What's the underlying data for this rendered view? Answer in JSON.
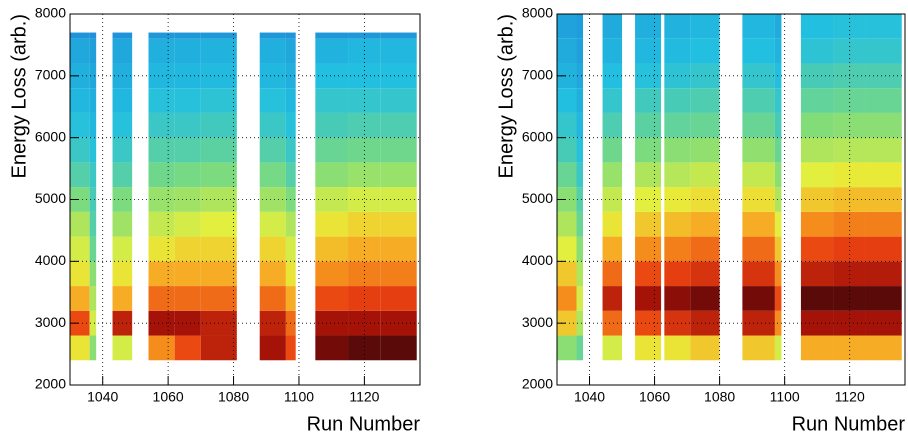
{
  "chart_data": [
    {
      "type": "heatmap",
      "x_label": "Run Number",
      "y_label": "Energy Loss (arb.)",
      "xlim": [
        1030,
        1137
      ],
      "ylim": [
        2000,
        8000
      ],
      "xticks": [
        1040,
        1060,
        1080,
        1100,
        1120
      ],
      "yticks": [
        2000,
        3000,
        4000,
        5000,
        6000,
        7000,
        8000
      ],
      "grid": true,
      "zlim": [
        0,
        100
      ],
      "colors": [
        "#1e88d8",
        "#22c0e0",
        "#7fdc7a",
        "#e8f03a",
        "#f8a020",
        "#e84010",
        "#a01008",
        "#5a0a08"
      ],
      "xbins": [
        1030,
        1036,
        1038,
        1043,
        1049,
        1054,
        1062,
        1070,
        1081,
        1088,
        1096,
        1099,
        1105,
        1115,
        1125,
        1136
      ],
      "ybins": [
        2400,
        2800,
        3200,
        3600,
        4000,
        4400,
        4800,
        5200,
        5600,
        6000,
        6400,
        6800,
        7200,
        7600,
        7700
      ],
      "z": [
        [
          45,
          30,
          null,
          40,
          null,
          60,
          70,
          80,
          null,
          85,
          70,
          null,
          95,
          100,
          100
        ],
        [
          70,
          40,
          null,
          80,
          null,
          85,
          85,
          80,
          null,
          80,
          65,
          null,
          85,
          85,
          85
        ],
        [
          55,
          35,
          null,
          55,
          null,
          65,
          65,
          65,
          null,
          65,
          55,
          null,
          70,
          72,
          72
        ],
        [
          45,
          30,
          null,
          45,
          null,
          55,
          55,
          55,
          null,
          55,
          45,
          null,
          60,
          62,
          62
        ],
        [
          40,
          25,
          null,
          40,
          null,
          45,
          48,
          48,
          null,
          48,
          40,
          null,
          52,
          55,
          55
        ],
        [
          35,
          22,
          null,
          33,
          null,
          38,
          40,
          42,
          null,
          40,
          35,
          null,
          45,
          48,
          48
        ],
        [
          28,
          20,
          null,
          28,
          null,
          32,
          33,
          35,
          null,
          33,
          28,
          null,
          38,
          40,
          40
        ],
        [
          22,
          18,
          null,
          22,
          null,
          26,
          27,
          28,
          null,
          27,
          22,
          null,
          30,
          32,
          32
        ],
        [
          18,
          15,
          null,
          18,
          null,
          22,
          22,
          23,
          null,
          22,
          18,
          null,
          25,
          26,
          26
        ],
        [
          15,
          12,
          null,
          15,
          null,
          18,
          18,
          19,
          null,
          18,
          15,
          null,
          20,
          21,
          21
        ],
        [
          12,
          10,
          null,
          12,
          null,
          15,
          15,
          16,
          null,
          15,
          12,
          null,
          17,
          17,
          17
        ],
        [
          10,
          8,
          null,
          10,
          null,
          12,
          12,
          13,
          null,
          12,
          10,
          null,
          14,
          14,
          14
        ],
        [
          8,
          6,
          null,
          8,
          null,
          10,
          10,
          11,
          null,
          10,
          8,
          null,
          11,
          12,
          12
        ],
        [
          3,
          2,
          null,
          3,
          null,
          4,
          4,
          4,
          null,
          4,
          3,
          null,
          4,
          4,
          4
        ]
      ]
    },
    {
      "type": "heatmap",
      "x_label": "Run Number",
      "y_label": "Energy Loss (arb.)",
      "xlim": [
        1030,
        1137
      ],
      "ylim": [
        2000,
        8000
      ],
      "xticks": [
        1040,
        1060,
        1080,
        1100,
        1120
      ],
      "yticks": [
        2000,
        3000,
        4000,
        5000,
        6000,
        7000,
        8000
      ],
      "grid": true,
      "zlim": [
        0,
        100
      ],
      "colors": [
        "#1e88d8",
        "#22c0e0",
        "#7fdc7a",
        "#e8f03a",
        "#f8a020",
        "#e84010",
        "#a01008",
        "#5a0a08"
      ],
      "xbins": [
        1030,
        1036,
        1038,
        1044,
        1050,
        1054,
        1062,
        1063,
        1071,
        1080,
        1087,
        1097,
        1099,
        1105,
        1115,
        1125,
        1136
      ],
      "ybins": [
        2400,
        2800,
        3200,
        3600,
        4000,
        4400,
        4800,
        5200,
        5600,
        6000,
        6400,
        6800,
        7200,
        7600,
        8000
      ],
      "z": [
        [
          30,
          25,
          null,
          40,
          null,
          45,
          null,
          45,
          50,
          null,
          50,
          40,
          null,
          55,
          55,
          55
        ],
        [
          50,
          35,
          null,
          65,
          null,
          70,
          null,
          75,
          80,
          null,
          80,
          60,
          null,
          85,
          85,
          85
        ],
        [
          60,
          40,
          null,
          80,
          null,
          85,
          null,
          90,
          95,
          null,
          95,
          70,
          null,
          100,
          100,
          100
        ],
        [
          50,
          35,
          null,
          65,
          null,
          70,
          null,
          72,
          75,
          null,
          75,
          60,
          null,
          80,
          82,
          82
        ],
        [
          42,
          30,
          null,
          55,
          null,
          60,
          null,
          62,
          65,
          null,
          65,
          50,
          null,
          70,
          72,
          72
        ],
        [
          35,
          25,
          null,
          45,
          null,
          50,
          null,
          52,
          55,
          null,
          55,
          42,
          null,
          60,
          62,
          62
        ],
        [
          30,
          22,
          null,
          38,
          null,
          42,
          null,
          44,
          46,
          null,
          46,
          35,
          null,
          50,
          52,
          52
        ],
        [
          25,
          18,
          null,
          32,
          null,
          35,
          null,
          36,
          38,
          null,
          38,
          30,
          null,
          42,
          44,
          44
        ],
        [
          20,
          15,
          null,
          26,
          null,
          28,
          null,
          30,
          31,
          null,
          31,
          25,
          null,
          35,
          36,
          36
        ],
        [
          17,
          12,
          null,
          21,
          null,
          23,
          null,
          24,
          25,
          null,
          25,
          20,
          null,
          29,
          30,
          30
        ],
        [
          14,
          10,
          null,
          17,
          null,
          19,
          null,
          20,
          21,
          null,
          21,
          17,
          null,
          24,
          25,
          25
        ],
        [
          11,
          8,
          null,
          14,
          null,
          15,
          null,
          16,
          17,
          null,
          17,
          14,
          null,
          20,
          21,
          21
        ],
        [
          9,
          6,
          null,
          11,
          null,
          12,
          null,
          13,
          14,
          null,
          14,
          11,
          null,
          16,
          17,
          17
        ],
        [
          7,
          5,
          null,
          9,
          null,
          10,
          null,
          11,
          12,
          null,
          12,
          9,
          null,
          14,
          15,
          15
        ]
      ]
    }
  ]
}
